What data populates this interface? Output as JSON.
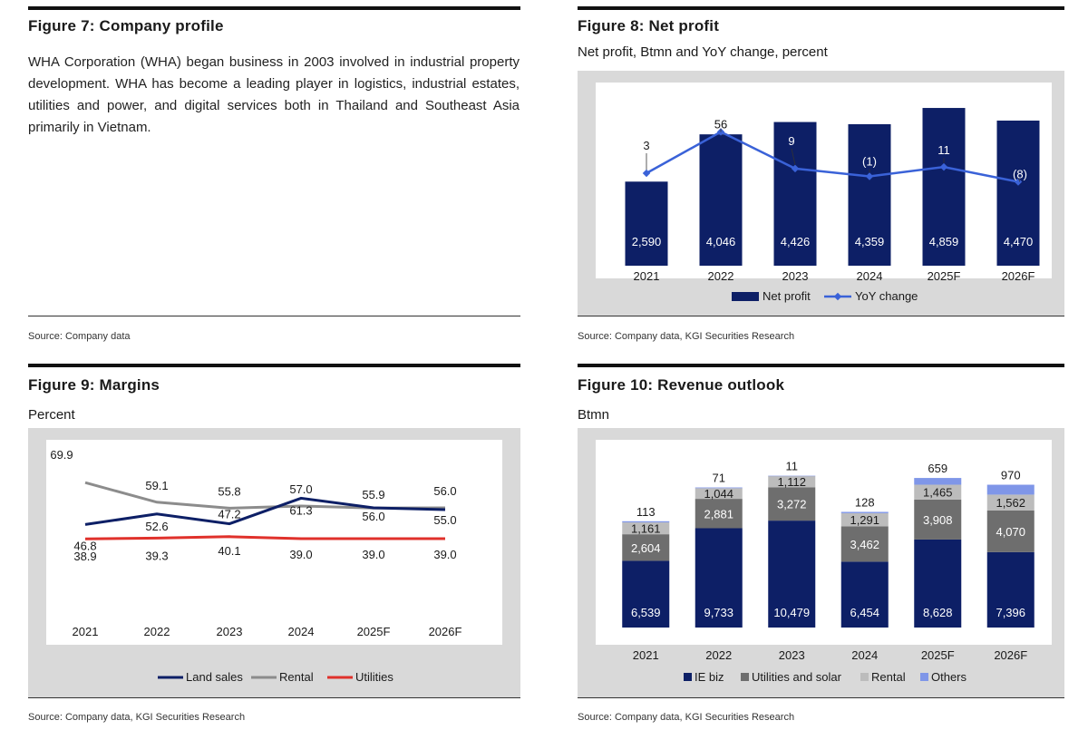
{
  "fig7": {
    "title": "Figure 7: Company profile",
    "text": "WHA Corporation (WHA) began business in 2003 involved in industrial property development. WHA has become a leading player in logistics, industrial estates, utilities and power, and digital services both in Thailand and Southeast Asia primarily in Vietnam.",
    "source": "Source: Company data"
  },
  "fig8": {
    "title": "Figure 8: Net profit",
    "subtitle": "Net profit, Btmn and YoY change, percent",
    "source": "Source: Company data, KGI Securities Research"
  },
  "fig9": {
    "title": "Figure 9: Margins",
    "subtitle": "Percent",
    "source": "Source: Company data, KGI Securities Research"
  },
  "fig10": {
    "title": "Figure 10: Revenue outlook",
    "subtitle": "Btmn",
    "source": "Source: Company data, KGI Securities Research"
  },
  "chart_data": [
    {
      "id": "net-profit",
      "type": "bar",
      "categories": [
        "2021",
        "2022",
        "2023",
        "2024",
        "2025F",
        "2026F"
      ],
      "series": [
        {
          "name": "Net profit",
          "type": "bar",
          "color": "#0d1f66",
          "values": [
            2590,
            4046,
            4426,
            4359,
            4859,
            4470
          ],
          "labels": [
            "2,590",
            "4,046",
            "4,426",
            "4,359",
            "4,859",
            "4,470"
          ]
        },
        {
          "name": "YoY change",
          "type": "line",
          "color": "#3a62d8",
          "values": [
            3,
            56,
            9,
            -1,
            11,
            -8
          ],
          "labels": [
            "3",
            "56",
            "9",
            "(1)",
            "11",
            "(8)"
          ]
        }
      ],
      "ylim_bars": [
        0,
        5000
      ],
      "ylim_line": [
        -40,
        60
      ],
      "legend": [
        "Net profit",
        "YoY change"
      ]
    },
    {
      "id": "margins",
      "type": "line",
      "categories": [
        "2021",
        "2022",
        "2023",
        "2024",
        "2025F",
        "2026F"
      ],
      "series": [
        {
          "name": "Land sales",
          "color": "#0d1f66",
          "values": [
            46.8,
            52.6,
            47.2,
            61.3,
            56.0,
            55.0
          ],
          "labels": [
            "46.8",
            "52.6",
            "47.2",
            "61.3",
            "56.0",
            "55.0"
          ]
        },
        {
          "name": "Rental",
          "color": "#8c8c8c",
          "values": [
            69.9,
            59.1,
            55.8,
            57.0,
            55.9,
            56.0
          ],
          "labels": [
            "69.9",
            "59.1",
            "55.8",
            "57.0",
            "55.9",
            "56.0"
          ]
        },
        {
          "name": "Utilities",
          "color": "#e0312b",
          "values": [
            38.9,
            39.3,
            40.1,
            39.0,
            39.0,
            39.0
          ],
          "labels": [
            "38.9",
            "39.3",
            "40.1",
            "39.0",
            "39.0",
            "39.0"
          ]
        }
      ],
      "ylim": [
        20,
        80
      ],
      "legend": [
        "Land sales",
        "Rental",
        "Utilities"
      ]
    },
    {
      "id": "revenue-outlook",
      "type": "bar",
      "stacked": true,
      "categories": [
        "2021",
        "2022",
        "2023",
        "2024",
        "2025F",
        "2026F"
      ],
      "series": [
        {
          "name": "IE biz",
          "color": "#0d1f66",
          "values": [
            6539,
            9733,
            10479,
            6454,
            8628,
            7396
          ],
          "labels": [
            "6,539",
            "9,733",
            "10,479",
            "6,454",
            "8,628",
            "7,396"
          ]
        },
        {
          "name": "Utilities and solar",
          "color": "#6e6e6e",
          "values": [
            2604,
            2881,
            3272,
            3462,
            3908,
            4070
          ],
          "labels": [
            "2,604",
            "2,881",
            "3,272",
            "3,462",
            "3,908",
            "4,070"
          ]
        },
        {
          "name": "Rental",
          "color": "#bcbcbc",
          "values": [
            1161,
            1044,
            1112,
            1291,
            1465,
            1562
          ],
          "labels": [
            "1,161",
            "1,044",
            "1,112",
            "1,291",
            "1,465",
            "1,562"
          ]
        },
        {
          "name": "Others",
          "color": "#7f96e8",
          "values": [
            113,
            71,
            11,
            128,
            659,
            970
          ],
          "labels": [
            "113",
            "71",
            "11",
            "128",
            "659",
            "970"
          ]
        }
      ],
      "ylim": [
        0,
        16000
      ],
      "legend": [
        "IE biz",
        "Utilities and solar",
        "Rental",
        "Others"
      ]
    }
  ]
}
